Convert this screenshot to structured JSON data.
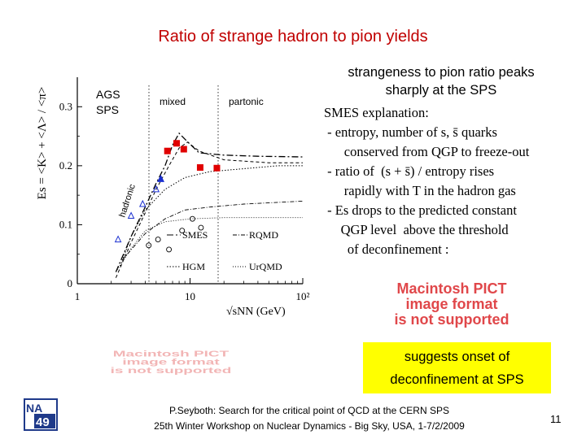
{
  "slide": {
    "title": "Ratio of strange hadron to pion yields",
    "peak_text": [
      "strangeness to pion ratio peaks",
      "sharply at the SPS"
    ],
    "smes_lines": [
      "SMES explanation:",
      " - entropy, number of s, s̄ quarks",
      "      conserved from QGP to freeze-out",
      " - ratio of  (s + s̄) / entropy rises",
      "      rapidly with T in the hadron gas",
      " - Es drops to the predicted constant",
      "     QGP level  above the threshold",
      "       of deconfinement :"
    ],
    "pict_placeholder": [
      "Macintosh PICT",
      "image format",
      "is not supported"
    ],
    "onset_box": [
      "suggests onset of",
      "deconfinement at SPS"
    ],
    "footer": [
      "P.Seyboth: Search for the critical point of QCD at the CERN SPS",
      "25th Winter Workshop on Nuclear Dynamics - Big Sky, USA, 1-7/2/2009"
    ],
    "page_number": "11",
    "logo_text": [
      "NA",
      "49"
    ],
    "colors": {
      "title": "#c00000",
      "highlight": "#ffff00",
      "data_red": "#e00000",
      "data_blue": "#1a2fd0"
    }
  },
  "chart_data": {
    "type": "scatter",
    "ylabel": "Es = <K> + <Λ> / <π>",
    "xlabel": "√sNN (GeV)",
    "x_scale": "log",
    "xlim": [
      1,
      100
    ],
    "ylim": [
      0,
      0.35
    ],
    "x_ticks": [
      "1",
      "10",
      "10²"
    ],
    "y_ticks": [
      "0",
      "0.1",
      "0.2",
      "0.3"
    ],
    "region_labels": [
      "AGS",
      "SPS",
      "mixed",
      "partonic",
      "hadronic"
    ],
    "legend": [
      "SMES",
      "HGM",
      "RQMD",
      "UrQMD"
    ],
    "series": [
      {
        "name": "SPS (red squares)",
        "x": [
          6.3,
          7.6,
          8.8,
          12.3,
          17.3
        ],
        "y": [
          0.225,
          0.238,
          0.228,
          0.197,
          0.196
        ]
      },
      {
        "name": "AGS (blue triangles)",
        "x": [
          5.5
        ],
        "y": [
          0.178
        ]
      },
      {
        "name": "open triangles",
        "x": [
          2.3,
          3.0,
          3.8,
          5.0
        ],
        "y": [
          0.075,
          0.115,
          0.135,
          0.16
        ]
      },
      {
        "name": "open circles",
        "x": [
          4.3,
          5.2,
          6.5,
          8.5,
          10.5,
          12.5
        ],
        "y": [
          0.065,
          0.075,
          0.058,
          0.09,
          0.11,
          0.095
        ]
      }
    ]
  }
}
